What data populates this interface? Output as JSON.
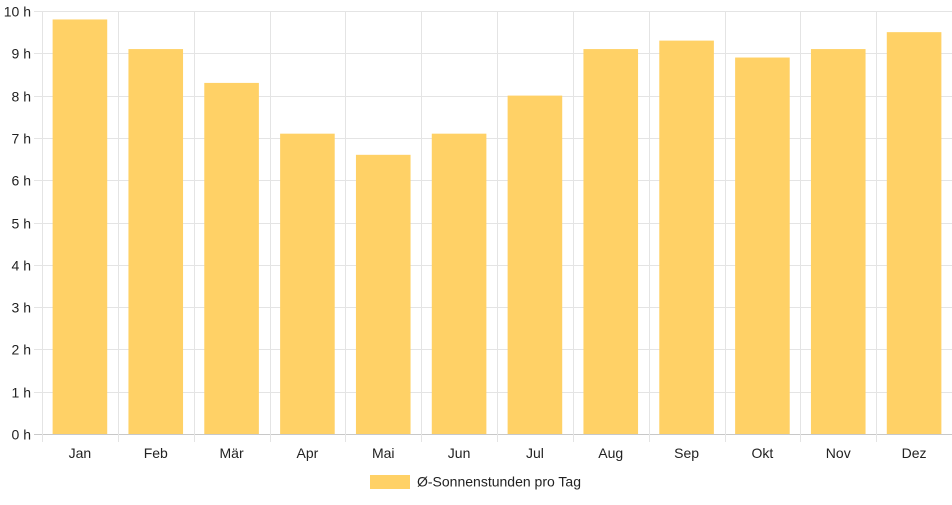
{
  "chart_data": {
    "type": "bar",
    "categories": [
      "Jan",
      "Feb",
      "Mär",
      "Apr",
      "Mai",
      "Jun",
      "Jul",
      "Aug",
      "Sep",
      "Okt",
      "Nov",
      "Dez"
    ],
    "series": [
      {
        "name": "Ø-Sonnenstunden pro Tag",
        "values": [
          9.8,
          9.1,
          8.3,
          7.1,
          6.6,
          7.1,
          8.0,
          9.1,
          9.3,
          8.9,
          9.1,
          9.5
        ],
        "color": "#ffd166"
      }
    ],
    "ylim": [
      0,
      10
    ],
    "y_ticks": [
      0,
      1,
      2,
      3,
      4,
      5,
      6,
      7,
      8,
      9,
      10
    ],
    "y_unit_suffix": " h",
    "grid": true,
    "legend_position": "bottom"
  }
}
